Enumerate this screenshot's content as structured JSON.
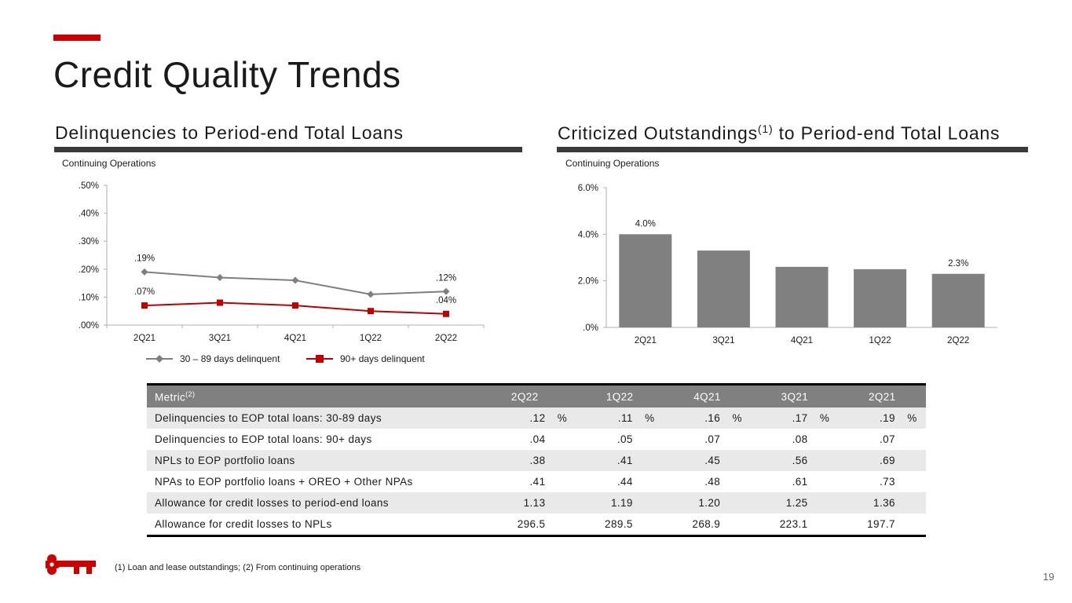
{
  "page": {
    "title": "Credit Quality Trends",
    "page_number": "19",
    "footnote": "(1) Loan and lease outstandings; (2) From continuing operations",
    "brand_color": "#cc0000"
  },
  "left_panel": {
    "title": "Delinquencies to Period-end Total Loans",
    "subnote": "Continuing Operations"
  },
  "right_panel": {
    "title_main": "Criticized Outstandings",
    "title_sup": "(1)",
    "title_rest": " to Period-end Total Loans",
    "subnote": "Continuing Operations"
  },
  "chart_data": [
    {
      "type": "line",
      "title": "Delinquencies to Period-end Total Loans",
      "categories": [
        "2Q21",
        "3Q21",
        "4Q21",
        "1Q22",
        "2Q22"
      ],
      "ylim": [
        0,
        0.5
      ],
      "yticks": [
        ".00%",
        ".10%",
        ".20%",
        ".30%",
        ".40%",
        ".50%"
      ],
      "grid": false,
      "legend": "bottom",
      "series": [
        {
          "name": "30 – 89 days delinquent",
          "values": [
            0.19,
            0.17,
            0.16,
            0.11,
            0.12
          ],
          "color": "#7f7f7f",
          "marker": "diamond",
          "labels": [
            {
              "index": 0,
              "text": ".19%"
            },
            {
              "index": 4,
              "text": ".12%"
            }
          ]
        },
        {
          "name": "90+ days delinquent",
          "values": [
            0.07,
            0.08,
            0.07,
            0.05,
            0.04
          ],
          "color": "#c00000",
          "marker": "square",
          "labels": [
            {
              "index": 0,
              "text": ".07%"
            },
            {
              "index": 4,
              "text": ".04%"
            }
          ]
        }
      ]
    },
    {
      "type": "bar",
      "title": "Criticized Outstandings to Period-end Total Loans",
      "categories": [
        "2Q21",
        "3Q21",
        "4Q21",
        "1Q22",
        "2Q22"
      ],
      "values": [
        4.0,
        3.3,
        2.6,
        2.5,
        2.3
      ],
      "ylim": [
        0,
        6
      ],
      "yticks": [
        ".0%",
        "2.0%",
        "4.0%",
        "6.0%"
      ],
      "grid": false,
      "color": "#808080",
      "labels": [
        {
          "index": 0,
          "text": "4.0%"
        },
        {
          "index": 4,
          "text": "2.3%"
        }
      ]
    }
  ],
  "table": {
    "metric_header": "Metric",
    "metric_header_sup": "(2)",
    "columns": [
      "2Q22",
      "1Q22",
      "4Q21",
      "3Q21",
      "2Q21"
    ],
    "rows": [
      {
        "label": "Delinquencies to EOP total loans: 30-89 days",
        "values": [
          ".12",
          ".11",
          ".16",
          ".17",
          ".19"
        ],
        "suffix": "%"
      },
      {
        "label": "Delinquencies to EOP total loans: 90+ days",
        "values": [
          ".04",
          ".05",
          ".07",
          ".08",
          ".07"
        ],
        "suffix": ""
      },
      {
        "label": "NPLs to EOP portfolio loans",
        "values": [
          ".38",
          ".41",
          ".45",
          ".56",
          ".69"
        ],
        "suffix": ""
      },
      {
        "label": "NPAs to EOP portfolio loans + OREO + Other NPAs",
        "values": [
          ".41",
          ".44",
          ".48",
          ".61",
          ".73"
        ],
        "suffix": ""
      },
      {
        "label": "Allowance for credit losses to period-end loans",
        "values": [
          "1.13",
          "1.19",
          "1.20",
          "1.25",
          "1.36"
        ],
        "suffix": ""
      },
      {
        "label": "Allowance for credit losses to NPLs",
        "values": [
          "296.5",
          "289.5",
          "268.9",
          "223.1",
          "197.7"
        ],
        "suffix": ""
      }
    ]
  }
}
